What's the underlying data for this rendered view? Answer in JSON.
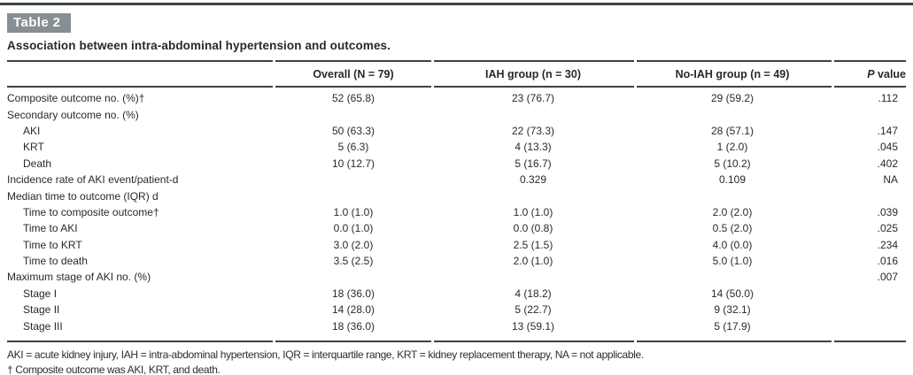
{
  "header": {
    "table_label": "Table 2",
    "title": "Association between intra-abdominal hypertension and outcomes."
  },
  "table": {
    "group_columns": [
      "Overall (N = 79)",
      "IAH group (n = 30)",
      "No-IAH group (n = 49)"
    ],
    "p_column": {
      "symbol": "P",
      "label": " value"
    },
    "rows": [
      {
        "label": "Composite outcome no. (%)†",
        "indent": false,
        "overall": "52 (65.8)",
        "iah": "23 (76.7)",
        "no_iah": "29 (59.2)",
        "p": ".112"
      },
      {
        "label": "Secondary outcome no. (%)",
        "indent": false,
        "overall": "",
        "iah": "",
        "no_iah": "",
        "p": ""
      },
      {
        "label": "AKI",
        "indent": true,
        "overall": "50 (63.3)",
        "iah": "22 (73.3)",
        "no_iah": "28 (57.1)",
        "p": ".147"
      },
      {
        "label": "KRT",
        "indent": true,
        "overall": "5 (6.3)",
        "iah": "4 (13.3)",
        "no_iah": "1 (2.0)",
        "p": ".045"
      },
      {
        "label": "Death",
        "indent": true,
        "overall": "10 (12.7)",
        "iah": "5 (16.7)",
        "no_iah": "5 (10.2)",
        "p": ".402"
      },
      {
        "label": "Incidence rate of AKI event/patient-d",
        "indent": false,
        "overall": "",
        "iah": "0.329",
        "no_iah": "0.109",
        "p": "NA"
      },
      {
        "label": "Median time to outcome (IQR) d",
        "indent": false,
        "overall": "",
        "iah": "",
        "no_iah": "",
        "p": ""
      },
      {
        "label": "Time to composite outcome†",
        "indent": true,
        "overall": "1.0 (1.0)",
        "iah": "1.0 (1.0)",
        "no_iah": "2.0 (2.0)",
        "p": ".039"
      },
      {
        "label": "Time to AKI",
        "indent": true,
        "overall": "0.0 (1.0)",
        "iah": "0.0 (0.8)",
        "no_iah": "0.5 (2.0)",
        "p": ".025"
      },
      {
        "label": "Time to KRT",
        "indent": true,
        "overall": "3.0 (2.0)",
        "iah": "2.5 (1.5)",
        "no_iah": "4.0 (0.0)",
        "p": ".234"
      },
      {
        "label": "Time to death",
        "indent": true,
        "overall": "3.5 (2.5)",
        "iah": "2.0 (1.0)",
        "no_iah": "5.0 (1.0)",
        "p": ".016"
      },
      {
        "label": "Maximum stage of AKI no. (%)",
        "indent": false,
        "overall": "",
        "iah": "",
        "no_iah": "",
        "p": ".007"
      },
      {
        "label": "Stage I",
        "indent": true,
        "overall": "18 (36.0)",
        "iah": "4 (18.2)",
        "no_iah": "14 (50.0)",
        "p": ""
      },
      {
        "label": "Stage II",
        "indent": true,
        "overall": "14 (28.0)",
        "iah": "5 (22.7)",
        "no_iah": "9 (32.1)",
        "p": ""
      },
      {
        "label": "Stage III",
        "indent": true,
        "overall": "18 (36.0)",
        "iah": "13 (59.1)",
        "no_iah": "5 (17.9)",
        "p": ""
      }
    ]
  },
  "footnotes": {
    "abbreviations": "AKI = acute kidney injury, IAH = intra-abdominal hypertension, IQR = interquartile range, KRT = kidney replacement therapy, NA = not applicable.",
    "dagger": "† Composite outcome was AKI, KRT, and death."
  },
  "colors": {
    "label_box_background": "#878f92",
    "rule": "#3b4245",
    "text": "#27292b"
  }
}
